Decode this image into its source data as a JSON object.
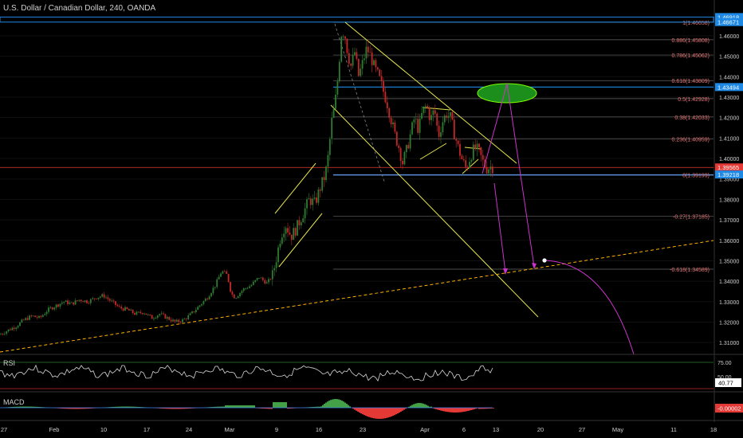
{
  "header": {
    "title": "U.S. Dollar / Canadian Dollar, 240, OANDA"
  },
  "colors": {
    "up": "#2e7d32",
    "down": "#c62828",
    "upper_box": "#1e88e5",
    "fib_line": "#666666",
    "fib_text": "#e57373",
    "channel": "#e6e64c",
    "trend": "#ffb300",
    "arrow": "#cc33cc",
    "ellipse_fill": "#1b8e1b",
    "ellipse_stroke": "#7fff00",
    "current_badge": "#e53935",
    "level_badge": "#1e88e5"
  },
  "chart_data": {
    "type": "candlestick",
    "symbol": "U.S. Dollar / Canadian Dollar",
    "interval": "240",
    "source": "OANDA",
    "price_axis": {
      "range": [
        1.305,
        1.4705
      ],
      "ticks": [
        1.46,
        1.45,
        1.44,
        1.43,
        1.42,
        1.41,
        1.4,
        1.39,
        1.38,
        1.37,
        1.36,
        1.35,
        1.34,
        1.33,
        1.32,
        1.31
      ],
      "tick_labels": [
        "1.46000",
        "1.45000",
        "1.44000",
        "1.43000",
        "1.42000",
        "1.41000",
        "1.40000",
        "1.39000",
        "1.38000",
        "1.37000",
        "1.36000",
        "1.35000",
        "1.34000",
        "1.33000",
        "1.32000",
        "1.31000"
      ],
      "badges": [
        {
          "label": "1.46918",
          "value": 1.46918,
          "kind": "level"
        },
        {
          "label": "1.46671",
          "value": 1.46671,
          "kind": "level"
        },
        {
          "label": "1.43494",
          "value": 1.43494,
          "kind": "level"
        },
        {
          "label": "1.39565",
          "value": 1.39565,
          "kind": "current"
        },
        {
          "label": "1.39218",
          "value": 1.39218,
          "kind": "level"
        }
      ]
    },
    "time_axis": {
      "labels": [
        "27",
        "Feb",
        "10",
        "17",
        "24",
        "Mar",
        "9",
        "16",
        "23",
        "Apr",
        "6",
        "13",
        "20",
        "27",
        "May",
        "11",
        "18"
      ]
    },
    "price_path": [
      [
        0,
        1.314
      ],
      [
        10,
        1.316
      ],
      [
        20,
        1.318
      ],
      [
        30,
        1.321
      ],
      [
        40,
        1.323
      ],
      [
        50,
        1.322
      ],
      [
        60,
        1.326
      ],
      [
        70,
        1.328
      ],
      [
        80,
        1.33
      ],
      [
        90,
        1.329
      ],
      [
        100,
        1.331
      ],
      [
        110,
        1.33
      ],
      [
        120,
        1.332
      ],
      [
        130,
        1.333
      ],
      [
        140,
        1.33
      ],
      [
        150,
        1.327
      ],
      [
        160,
        1.326
      ],
      [
        170,
        1.324
      ],
      [
        180,
        1.325
      ],
      [
        190,
        1.322
      ],
      [
        200,
        1.324
      ],
      [
        210,
        1.322
      ],
      [
        220,
        1.32
      ],
      [
        230,
        1.321
      ],
      [
        240,
        1.324
      ],
      [
        250,
        1.328
      ],
      [
        260,
        1.332
      ],
      [
        270,
        1.338
      ],
      [
        278,
        1.345
      ],
      [
        285,
        1.343
      ],
      [
        290,
        1.334
      ],
      [
        295,
        1.332
      ],
      [
        305,
        1.336
      ],
      [
        315,
        1.338
      ],
      [
        325,
        1.342
      ],
      [
        335,
        1.339
      ],
      [
        342,
        1.343
      ],
      [
        347,
        1.352
      ],
      [
        352,
        1.362
      ],
      [
        358,
        1.368
      ],
      [
        365,
        1.362
      ],
      [
        372,
        1.366
      ],
      [
        380,
        1.373
      ],
      [
        388,
        1.38
      ],
      [
        395,
        1.378
      ],
      [
        402,
        1.386
      ],
      [
        408,
        1.392
      ],
      [
        412,
        1.402
      ],
      [
        416,
        1.418
      ],
      [
        420,
        1.426
      ],
      [
        424,
        1.44
      ],
      [
        428,
        1.461
      ],
      [
        432,
        1.462
      ],
      [
        436,
        1.452
      ],
      [
        440,
        1.445
      ],
      [
        445,
        1.452
      ],
      [
        450,
        1.44
      ],
      [
        455,
        1.447
      ],
      [
        460,
        1.454
      ],
      [
        465,
        1.45
      ],
      [
        470,
        1.444
      ],
      [
        475,
        1.44
      ],
      [
        480,
        1.434
      ],
      [
        485,
        1.428
      ],
      [
        490,
        1.42
      ],
      [
        495,
        1.412
      ],
      [
        500,
        1.406
      ],
      [
        505,
        1.398
      ],
      [
        510,
        1.404
      ],
      [
        515,
        1.412
      ],
      [
        520,
        1.42
      ],
      [
        525,
        1.414
      ],
      [
        530,
        1.423
      ],
      [
        535,
        1.426
      ],
      [
        540,
        1.419
      ],
      [
        545,
        1.424
      ],
      [
        550,
        1.411
      ],
      [
        555,
        1.418
      ],
      [
        560,
        1.422
      ],
      [
        565,
        1.42
      ],
      [
        570,
        1.412
      ],
      [
        575,
        1.405
      ],
      [
        580,
        1.399
      ],
      [
        585,
        1.395
      ],
      [
        590,
        1.401
      ],
      [
        595,
        1.405
      ],
      [
        600,
        1.404
      ],
      [
        605,
        1.399
      ],
      [
        610,
        1.395
      ],
      [
        615,
        1.396
      ],
      [
        618,
        1.3957
      ]
    ],
    "fib_levels": [
      {
        "ratio": "1",
        "label": "1(1.46658)",
        "value": 1.46658
      },
      {
        "ratio": "0.886",
        "label": "0.886(1.45808)",
        "value": 1.45808
      },
      {
        "ratio": "0.786",
        "label": "0.786(1.45062)",
        "value": 1.45062
      },
      {
        "ratio": "0.618",
        "label": "0.618(1.43809)",
        "value": 1.43809
      },
      {
        "ratio": "0.5",
        "label": "0.5(1.42928)",
        "value": 1.42928
      },
      {
        "ratio": "0.38",
        "label": "0.38(1.42033)",
        "value": 1.42033
      },
      {
        "ratio": "0.236",
        "label": "0.236(1.40959)",
        "value": 1.40959
      },
      {
        "ratio": "0",
        "label": "0(1.39199)",
        "value": 1.39199
      },
      {
        "ratio": "-0.27",
        "label": "-0.27(1.37185)",
        "value": 1.37185
      },
      {
        "ratio": "-0.618",
        "label": "-0.618(1.34589)",
        "value": 1.34589
      }
    ],
    "current_price": 1.39565,
    "rsi": {
      "label": "RSI",
      "levels": [
        "75.00",
        "50.00"
      ],
      "value": "40.77"
    },
    "macd": {
      "label": "MACD",
      "value": "-0.00002"
    }
  }
}
